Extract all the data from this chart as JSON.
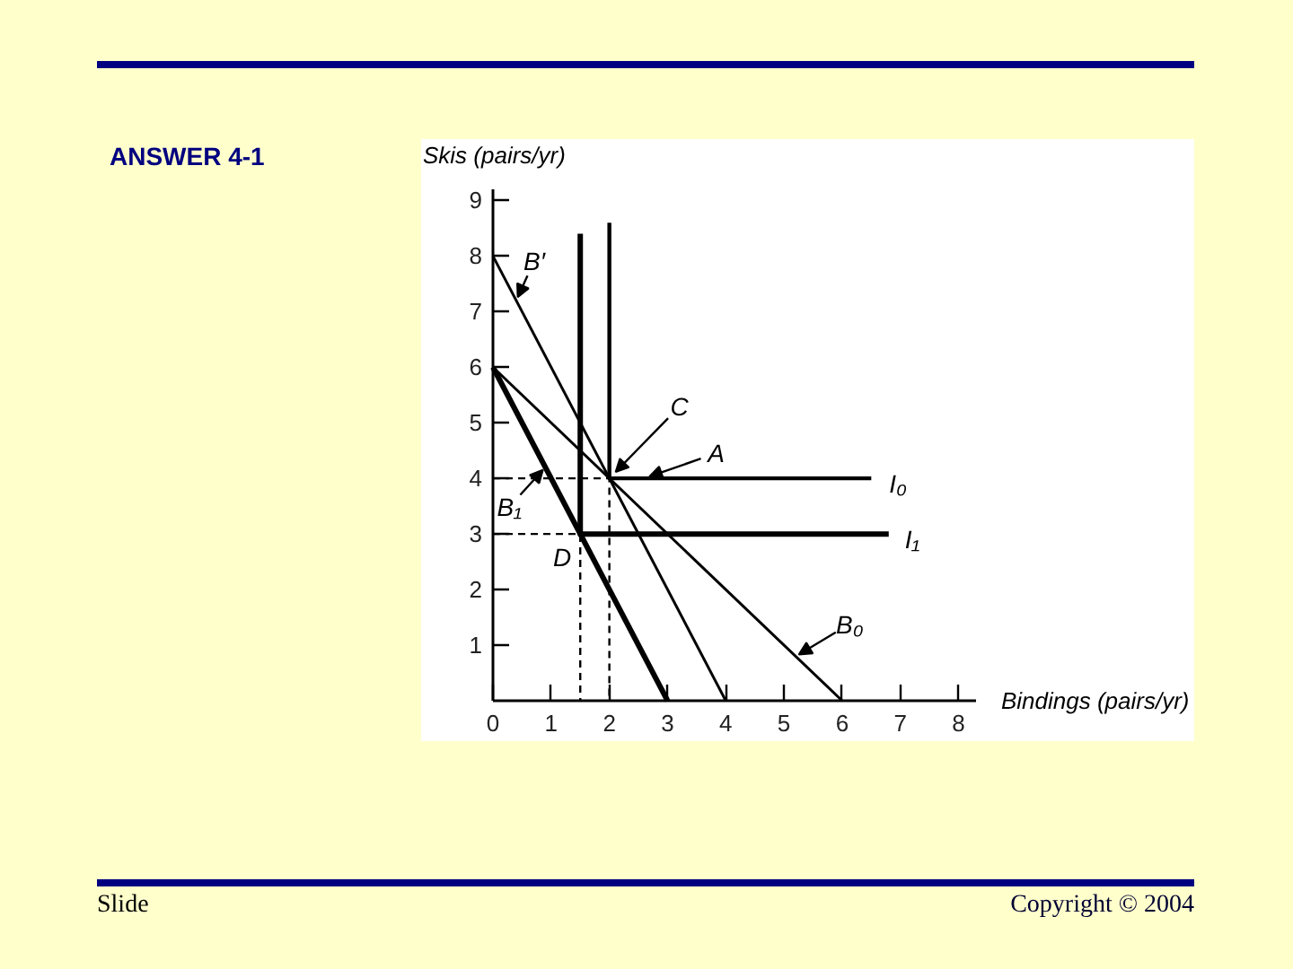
{
  "chart_data": {
    "type": "line",
    "title": "ANSWER 4-1",
    "xlabel": "Bindings (pairs/yr)",
    "ylabel": "Skis (pairs/yr)",
    "xlim": [
      0,
      8.3
    ],
    "ylim": [
      0,
      9.2
    ],
    "xticks": [
      0,
      1,
      2,
      3,
      4,
      5,
      6,
      7,
      8
    ],
    "yticks": [
      1,
      2,
      3,
      4,
      5,
      6,
      7,
      8,
      9
    ],
    "series": [
      {
        "name": "B′",
        "color": "#000000",
        "x": [
          0,
          4
        ],
        "values": [
          8,
          0
        ]
      },
      {
        "name": "B₀",
        "color": "#000000",
        "x": [
          0,
          6
        ],
        "values": [
          6,
          0
        ]
      },
      {
        "name": "B₁",
        "color": "#000000",
        "x": [
          0,
          3
        ],
        "values": [
          6,
          0
        ]
      },
      {
        "name": "I₀",
        "color": "#000000",
        "x": [
          2,
          2,
          6.5
        ],
        "values": [
          8.6,
          4,
          4
        ]
      },
      {
        "name": "I₁",
        "color": "#000000",
        "x": [
          1.5,
          1.5,
          6.8
        ],
        "values": [
          8.4,
          3,
          3
        ]
      },
      {
        "color": "#000000",
        "x": [
          0,
          2,
          2
        ],
        "values": [
          4,
          4,
          0
        ],
        "line_style": "dashed"
      },
      {
        "color": "#000000",
        "x": [
          0,
          1.5,
          1.5
        ],
        "values": [
          3,
          3,
          0
        ],
        "line_style": "dashed"
      }
    ],
    "annotations": [
      {
        "text": "C",
        "x": 2,
        "y": 4
      },
      {
        "text": "A",
        "x": 2.6,
        "y": 4
      },
      {
        "text": "D",
        "x": 1.5,
        "y": 3
      },
      "Slide",
      "Copyright © 2004"
    ]
  }
}
